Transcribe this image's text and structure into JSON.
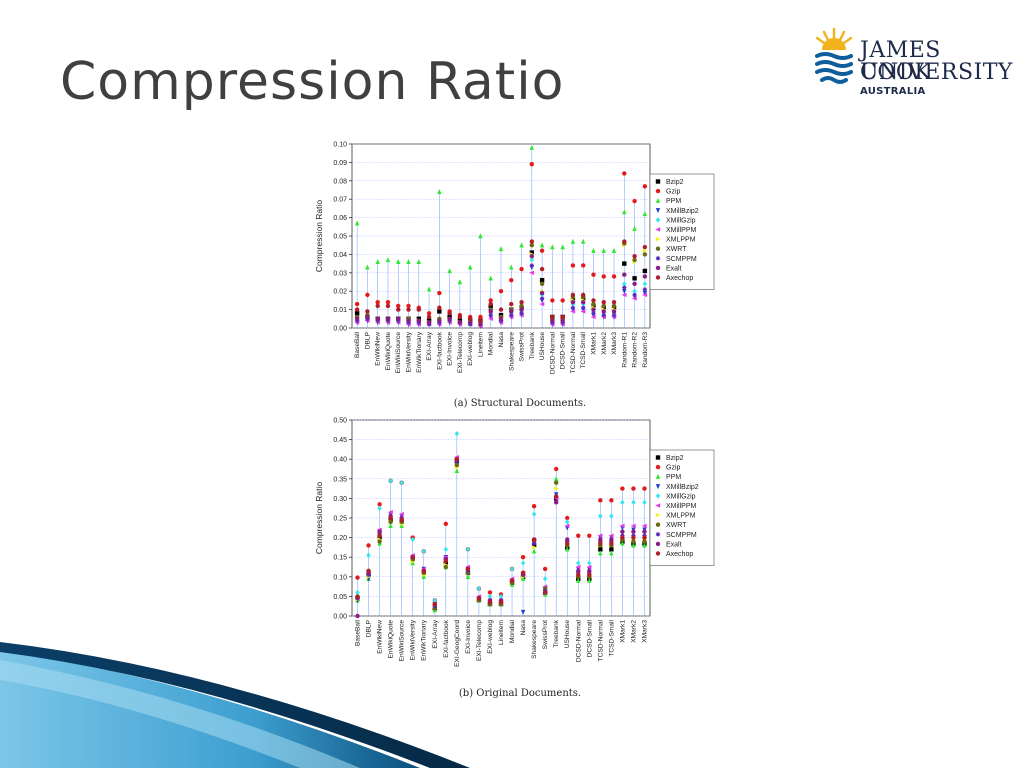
{
  "slide": {
    "title": "Compression Ratio",
    "logo": {
      "line1": "JAMES COOK",
      "line2": "UNIVERSITY",
      "line3": "AUSTRALIA"
    }
  },
  "colors": {
    "title": "#404040",
    "logo_navy": "#1d2a4a",
    "logo_gold": "#f2b21b",
    "swoosh_dark": "#0b4f7c",
    "swoosh_light": "#5fb6de"
  },
  "chart_data": [
    {
      "type": "scatter",
      "caption": "(a) Structural Documents.",
      "ylabel": "Compression Ratio",
      "ylim": [
        0,
        0.1
      ],
      "yticks": [
        "0.00",
        "0.01",
        "0.02",
        "0.03",
        "0.04",
        "0.05",
        "0.06",
        "0.07",
        "0.08",
        "0.09",
        "0.10"
      ],
      "grid": true,
      "legend_position": "right",
      "categories": [
        "BaseBall",
        "DBLP",
        "EnWikiNew",
        "EnWikiQuote",
        "EnWikiSource",
        "EnWikiVersity",
        "EnWikTionary",
        "EXI-Array",
        "EXI-factbook",
        "EXI-Invoice",
        "EXI-Telecomp",
        "EXI-weblog",
        "Lineitem",
        "Mondial",
        "Nasa",
        "Shakespeare",
        "SwissProt",
        "Treebank",
        "USHouse",
        "DCSD-Normal",
        "DCSD-Small",
        "TCSD-Normal",
        "TCSD-Small",
        "XMark1",
        "XMark2",
        "XMark3",
        "Random-R1",
        "Random-R2",
        "Random-R3"
      ],
      "series": [
        {
          "name": "Bzip2",
          "color": "#000000",
          "marker": "square",
          "values": [
            0.008,
            0.006,
            0.005,
            0.005,
            0.005,
            0.005,
            0.005,
            0.004,
            0.009,
            0.006,
            0.004,
            0.004,
            0.004,
            0.012,
            0.007,
            0.01,
            0.011,
            0.041,
            0.026,
            0.006,
            0.006,
            0.015,
            0.016,
            0.012,
            0.011,
            0.011,
            0.035,
            0.027,
            0.031
          ]
        },
        {
          "name": "Gzip",
          "color": "#e41a1c",
          "marker": "circle",
          "values": [
            0.013,
            0.018,
            0.014,
            0.014,
            0.012,
            0.012,
            0.011,
            0.008,
            0.019,
            0.009,
            0.007,
            0.006,
            0.006,
            0.015,
            0.02,
            0.026,
            0.032,
            0.089,
            0.042,
            0.015,
            0.015,
            0.034,
            0.034,
            0.029,
            0.028,
            0.028,
            0.084,
            0.069,
            0.077
          ]
        },
        {
          "name": "PPM",
          "color": "#2ee82e",
          "marker": "triangle-up",
          "values": [
            0.057,
            0.033,
            0.036,
            0.037,
            0.036,
            0.036,
            0.036,
            0.021,
            0.074,
            0.031,
            0.025,
            0.033,
            0.05,
            0.027,
            0.043,
            0.033,
            0.045,
            0.098,
            0.045,
            0.044,
            0.044,
            0.047,
            0.047,
            0.042,
            0.042,
            0.042,
            0.063,
            0.054,
            0.062
          ]
        },
        {
          "name": "XMillBzip2",
          "color": "#1f3fd0",
          "marker": "triangle-down",
          "values": [
            0.003,
            0.004,
            0.003,
            0.003,
            0.003,
            0.002,
            0.002,
            0.002,
            0.002,
            0.003,
            0.002,
            0.002,
            0.001,
            0.006,
            0.003,
            0.006,
            0.007,
            0.033,
            0.015,
            0.002,
            0.002,
            0.01,
            0.01,
            0.007,
            0.006,
            0.006,
            0.02,
            0.017,
            0.019
          ]
        },
        {
          "name": "XMillGzip",
          "color": "#33e6f0",
          "marker": "diamond",
          "values": [
            0.004,
            0.006,
            0.004,
            0.004,
            0.004,
            0.003,
            0.003,
            0.003,
            0.003,
            0.004,
            0.003,
            0.002,
            0.002,
            0.008,
            0.004,
            0.008,
            0.009,
            0.037,
            0.018,
            0.003,
            0.003,
            0.013,
            0.013,
            0.009,
            0.008,
            0.008,
            0.024,
            0.02,
            0.024
          ]
        },
        {
          "name": "XMillPPM",
          "color": "#e33ce8",
          "marker": "triangle-left",
          "values": [
            0.003,
            0.004,
            0.003,
            0.003,
            0.003,
            0.002,
            0.002,
            0.002,
            0.002,
            0.003,
            0.002,
            0.002,
            0.001,
            0.005,
            0.003,
            0.006,
            0.007,
            0.03,
            0.013,
            0.002,
            0.002,
            0.009,
            0.009,
            0.006,
            0.006,
            0.006,
            0.018,
            0.016,
            0.018
          ]
        },
        {
          "name": "XMLPPM",
          "color": "#f2f22e",
          "marker": "triangle-right",
          "values": [
            0.005,
            0.006,
            0.004,
            0.004,
            0.004,
            0.004,
            0.004,
            0.003,
            0.004,
            0.004,
            0.003,
            0.003,
            0.002,
            0.009,
            0.005,
            0.009,
            0.01,
            0.04,
            0.02,
            0.004,
            0.004,
            0.015,
            0.015,
            0.011,
            0.01,
            0.01,
            0.045,
            0.036,
            0.042
          ]
        },
        {
          "name": "XWRT",
          "color": "#6b6b12",
          "marker": "circle",
          "values": [
            0.006,
            0.007,
            0.005,
            0.005,
            0.005,
            0.005,
            0.004,
            0.003,
            0.005,
            0.005,
            0.003,
            0.003,
            0.002,
            0.01,
            0.006,
            0.01,
            0.012,
            0.045,
            0.024,
            0.005,
            0.005,
            0.017,
            0.017,
            0.013,
            0.012,
            0.012,
            0.046,
            0.037,
            0.04
          ]
        },
        {
          "name": "SCMPPM",
          "color": "#5a2bbf",
          "marker": "star",
          "values": [
            0.004,
            0.005,
            0.004,
            0.004,
            0.004,
            0.003,
            0.003,
            0.002,
            0.003,
            0.004,
            0.003,
            0.002,
            0.002,
            0.007,
            0.004,
            0.007,
            0.008,
            0.034,
            0.016,
            0.003,
            0.003,
            0.011,
            0.011,
            0.008,
            0.007,
            0.007,
            0.022,
            0.018,
            0.021
          ]
        },
        {
          "name": "Exalt",
          "color": "#8a1c8a",
          "marker": "circle",
          "values": [
            0.005,
            0.006,
            0.005,
            0.005,
            0.005,
            0.004,
            0.004,
            0.003,
            0.004,
            0.005,
            0.003,
            0.003,
            0.002,
            0.009,
            0.005,
            0.009,
            0.01,
            0.039,
            0.019,
            0.004,
            0.004,
            0.014,
            0.014,
            0.01,
            0.009,
            0.009,
            0.029,
            0.024,
            0.028
          ]
        },
        {
          "name": "Axechop",
          "color": "#b01e2a",
          "marker": "circle",
          "values": [
            0.01,
            0.009,
            0.012,
            0.012,
            0.01,
            0.01,
            0.01,
            0.006,
            0.011,
            0.008,
            0.006,
            0.005,
            0.004,
            0.013,
            0.01,
            0.013,
            0.014,
            0.047,
            0.032,
            0.006,
            0.006,
            0.018,
            0.018,
            0.015,
            0.014,
            0.014,
            0.047,
            0.039,
            0.044
          ]
        }
      ]
    },
    {
      "type": "scatter",
      "caption": "(b) Original Documents.",
      "ylabel": "Compression Ratio",
      "ylim": [
        0,
        0.5
      ],
      "yticks": [
        "0.00",
        "0.05",
        "0.10",
        "0.15",
        "0.20",
        "0.25",
        "0.30",
        "0.35",
        "0.40",
        "0.45",
        "0.50"
      ],
      "grid": true,
      "legend_position": "right",
      "categories": [
        "BaseBall",
        "DBLP",
        "EnWikiNew",
        "EnWikiQuote",
        "EnWikiSource",
        "EnWikiVersity",
        "EnWikTionary",
        "EXI-Array",
        "EXI-factbook",
        "EXI-GeogCoord",
        "EXI-Invoice",
        "EXI-Telecomp",
        "EXI-weblog",
        "Lineitem",
        "Mondial",
        "Nasa",
        "Shakespeare",
        "SwissProt",
        "Treebank",
        "USHouse",
        "DCSD-Normal",
        "DCSD-Small",
        "TCSD-Normal",
        "TCSD-Small",
        "XMark1",
        "XMark2",
        "XMark3"
      ],
      "series": [
        {
          "name": "Bzip2",
          "color": "#000000",
          "marker": "square",
          "values": [
            0.045,
            0.105,
            0.2,
            0.245,
            0.24,
            0.145,
            0.11,
            0.02,
            0.135,
            0.395,
            0.11,
            0.04,
            0.03,
            0.03,
            0.085,
            0.1,
            0.18,
            0.06,
            0.3,
            0.175,
            0.095,
            0.095,
            0.17,
            0.17,
            0.19,
            0.185,
            0.185
          ]
        },
        {
          "name": "Gzip",
          "color": "#e41a1c",
          "marker": "circle",
          "values": [
            0.098,
            0.18,
            0.285,
            0.345,
            0.34,
            0.2,
            0.165,
            0.04,
            0.235,
            0.4,
            0.17,
            0.07,
            0.06,
            0.055,
            0.12,
            0.15,
            0.28,
            0.12,
            0.375,
            0.25,
            0.205,
            0.205,
            0.295,
            0.295,
            0.325,
            0.325,
            0.325
          ]
        },
        {
          "name": "PPM",
          "color": "#2ee82e",
          "marker": "triangle-up",
          "values": [
            0.04,
            0.095,
            0.185,
            0.23,
            0.23,
            0.135,
            0.1,
            0.015,
            0.125,
            0.37,
            0.1,
            0.04,
            0.03,
            0.03,
            0.08,
            0.095,
            0.165,
            0.055,
            0.35,
            0.17,
            0.09,
            0.09,
            0.16,
            0.16,
            0.185,
            0.18,
            0.18
          ]
        },
        {
          "name": "XMillBzip2",
          "color": "#1f3fd0",
          "marker": "triangle-down",
          "values": [
            0.04,
            0.095,
            0.215,
            0.26,
            0.255,
            0.15,
            0.12,
            0.03,
            0.15,
            0.39,
            0.12,
            0.045,
            0.035,
            0.035,
            0.09,
            0.01,
            0.19,
            0.07,
            0.31,
            0.225,
            0.12,
            0.12,
            0.2,
            0.2,
            0.225,
            0.22,
            0.22
          ]
        },
        {
          "name": "XMillGzip",
          "color": "#33e6f0",
          "marker": "diamond",
          "values": [
            0.06,
            0.155,
            0.275,
            0.345,
            0.34,
            0.195,
            0.165,
            0.04,
            0.17,
            0.465,
            0.17,
            0.07,
            0.05,
            0.05,
            0.12,
            0.135,
            0.26,
            0.095,
            0.34,
            0.24,
            0.135,
            0.135,
            0.255,
            0.255,
            0.29,
            0.29,
            0.29
          ]
        },
        {
          "name": "XMillPPM",
          "color": "#e33ce8",
          "marker": "triangle-left",
          "values": [
            0.045,
            0.11,
            0.22,
            0.265,
            0.26,
            0.155,
            0.12,
            0.03,
            0.15,
            0.405,
            0.125,
            0.05,
            0.04,
            0.04,
            0.095,
            0.11,
            0.195,
            0.075,
            0.3,
            0.23,
            0.125,
            0.125,
            0.205,
            0.205,
            0.23,
            0.23,
            0.23
          ]
        },
        {
          "name": "XMLPPM",
          "color": "#f2f22e",
          "marker": "triangle-right",
          "values": [
            0.042,
            0.1,
            0.195,
            0.24,
            0.235,
            0.14,
            0.105,
            0.025,
            0.13,
            0.38,
            0.11,
            0.045,
            0.035,
            0.035,
            0.085,
            0.1,
            0.175,
            0.065,
            0.325,
            0.185,
            0.105,
            0.105,
            0.18,
            0.18,
            0.195,
            0.195,
            0.195
          ]
        },
        {
          "name": "XWRT",
          "color": "#6b6b12",
          "marker": "circle",
          "values": [
            0.05,
            0.115,
            0.19,
            0.24,
            0.24,
            0.145,
            0.11,
            0.02,
            0.125,
            0.385,
            0.11,
            0.04,
            0.03,
            0.03,
            0.085,
            0.11,
            0.19,
            0.07,
            0.34,
            0.18,
            0.1,
            0.1,
            0.18,
            0.18,
            0.195,
            0.19,
            0.19
          ]
        },
        {
          "name": "SCMPPM",
          "color": "#5a2bbf",
          "marker": "star",
          "values": [
            0.045,
            0.105,
            0.21,
            0.25,
            0.245,
            0.15,
            0.115,
            0.025,
            0.145,
            0.395,
            0.115,
            0.045,
            0.035,
            0.035,
            0.09,
            0.105,
            0.185,
            0.065,
            0.305,
            0.19,
            0.11,
            0.11,
            0.19,
            0.19,
            0.205,
            0.205,
            0.205
          ]
        },
        {
          "name": "Exalt",
          "color": "#8a1c8a",
          "marker": "circle",
          "values": [
            0.0,
            0.11,
            0.215,
            0.255,
            0.25,
            0.15,
            0.115,
            0.03,
            0.145,
            0.4,
            0.12,
            0.045,
            0.04,
            0.04,
            0.09,
            0.105,
            0.195,
            0.06,
            0.29,
            0.195,
            0.115,
            0.115,
            0.195,
            0.195,
            0.215,
            0.215,
            0.215
          ]
        },
        {
          "name": "Axechop",
          "color": "#b01e2a",
          "marker": "circle",
          "values": [
            0.048,
            0.115,
            0.205,
            0.25,
            0.245,
            0.15,
            0.115,
            0.03,
            0.14,
            0.4,
            0.12,
            0.045,
            0.035,
            0.035,
            0.09,
            0.11,
            0.195,
            0.06,
            0.305,
            0.185,
            0.105,
            0.105,
            0.185,
            0.185,
            0.2,
            0.2,
            0.2
          ]
        }
      ]
    }
  ]
}
